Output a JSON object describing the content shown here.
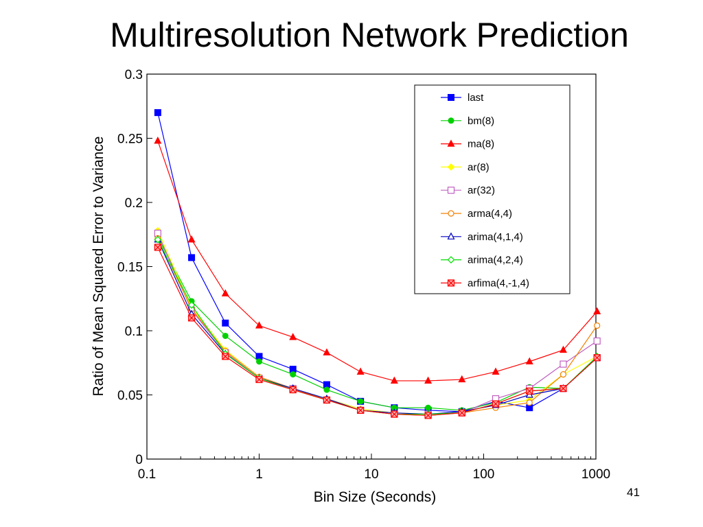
{
  "slide": {
    "title": "Multiresolution Network Prediction",
    "page_number": "41"
  },
  "chart_data": {
    "type": "line",
    "title": "",
    "xlabel": "Bin Size (Seconds)",
    "ylabel": "Ratio of Mean Squared Error to Variance",
    "xscale": "log",
    "xlim": [
      0.1,
      1000
    ],
    "ylim": [
      0,
      0.3
    ],
    "x_ticks": [
      {
        "value": 0.1,
        "label": "0.1"
      },
      {
        "value": 1,
        "label": "1"
      },
      {
        "value": 10,
        "label": "10"
      },
      {
        "value": 100,
        "label": "100"
      },
      {
        "value": 1000,
        "label": "1000"
      }
    ],
    "y_ticks": [
      {
        "value": 0,
        "label": "0"
      },
      {
        "value": 0.05,
        "label": "0.05"
      },
      {
        "value": 0.1,
        "label": "0.1"
      },
      {
        "value": 0.15,
        "label": "0.15"
      },
      {
        "value": 0.2,
        "label": "0.2"
      },
      {
        "value": 0.25,
        "label": "0.25"
      },
      {
        "value": 0.3,
        "label": "0.3"
      }
    ],
    "grid": false,
    "legend_position": "top-right",
    "x": [
      0.125,
      0.25,
      0.5,
      1,
      2,
      4,
      8,
      16,
      32,
      64,
      128,
      256,
      512,
      1024
    ],
    "series": [
      {
        "name": "last",
        "color": "#0000ff",
        "marker": "square-filled",
        "values": [
          0.27,
          0.157,
          0.106,
          0.08,
          0.07,
          0.058,
          0.045,
          0.04,
          0.038,
          0.037,
          0.045,
          0.04,
          0.055,
          0.079
        ]
      },
      {
        "name": "bm(8)",
        "color": "#00d000",
        "marker": "circle-filled",
        "values": [
          0.173,
          0.123,
          0.096,
          0.076,
          0.066,
          0.054,
          0.045,
          0.04,
          0.04,
          0.038,
          0.044,
          0.056,
          0.055,
          0.079
        ]
      },
      {
        "name": "ma(8)",
        "color": "#ff0000",
        "marker": "triangle-filled",
        "values": [
          0.248,
          0.171,
          0.129,
          0.104,
          0.095,
          0.083,
          0.068,
          0.061,
          0.061,
          0.062,
          0.068,
          0.076,
          0.085,
          0.115
        ]
      },
      {
        "name": "ar(8)",
        "color": "#ffff00",
        "marker": "diamond-filled",
        "values": [
          0.178,
          0.118,
          0.085,
          0.064,
          0.055,
          0.047,
          0.039,
          0.036,
          0.035,
          0.037,
          0.042,
          0.046,
          0.066,
          0.08
        ]
      },
      {
        "name": "ar(32)",
        "color": "#c060c0",
        "marker": "square-open",
        "values": [
          0.176,
          0.116,
          0.083,
          0.063,
          0.055,
          0.046,
          0.038,
          0.035,
          0.035,
          0.036,
          0.047,
          0.055,
          0.074,
          0.092
        ]
      },
      {
        "name": "arma(4,4)",
        "color": "#f08000",
        "marker": "circle-open",
        "values": [
          0.172,
          0.117,
          0.084,
          0.064,
          0.055,
          0.046,
          0.038,
          0.035,
          0.034,
          0.036,
          0.04,
          0.044,
          0.066,
          0.104
        ]
      },
      {
        "name": "arima(4,1,4)",
        "color": "#0000c0",
        "marker": "triangle-open",
        "values": [
          0.171,
          0.113,
          0.082,
          0.063,
          0.055,
          0.047,
          0.038,
          0.036,
          0.035,
          0.037,
          0.042,
          0.05,
          0.055,
          0.079
        ]
      },
      {
        "name": "arima(4,2,4)",
        "color": "#00e000",
        "marker": "diamond-open",
        "values": [
          0.171,
          0.12,
          0.082,
          0.063,
          0.054,
          0.046,
          0.038,
          0.035,
          0.035,
          0.036,
          0.043,
          0.053,
          0.055,
          0.08
        ]
      },
      {
        "name": "arfima(4,-1,4)",
        "color": "#ff0000",
        "marker": "square-x",
        "values": [
          0.165,
          0.11,
          0.08,
          0.062,
          0.054,
          0.046,
          0.038,
          0.035,
          0.034,
          0.036,
          0.043,
          0.053,
          0.055,
          0.079
        ]
      }
    ]
  }
}
